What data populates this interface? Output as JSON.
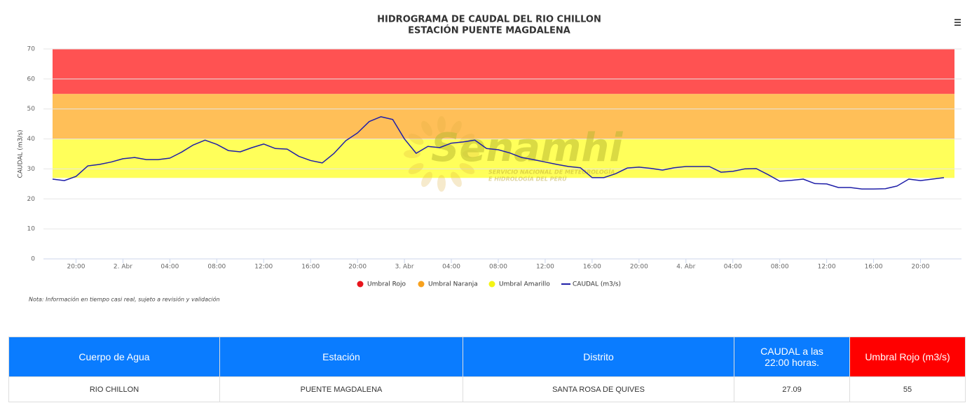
{
  "chart_data": {
    "type": "line",
    "title": "HIDROGRAMA DE CAUDAL DEL RIO CHILLON",
    "subtitle": "ESTACIÓN PUENTE MAGDALENA",
    "y_label": "CAUDAL (m3/s)",
    "note": "Nota: Información en tiempo casi real, sujeto a revisión y validación",
    "watermark": {
      "name": "Senamhi",
      "line1": "SERVICIO NACIONAL DE METEOROLOGÍA",
      "line2": "E HIDROLOGÍA DEL PERÚ"
    },
    "ylim": [
      0,
      70
    ],
    "yticks": [
      0,
      10,
      20,
      30,
      40,
      50,
      60,
      70
    ],
    "grid": true,
    "categories": [
      null,
      null,
      "20:00",
      null,
      null,
      null,
      "2. Abr",
      null,
      null,
      null,
      "04:00",
      null,
      null,
      null,
      "08:00",
      null,
      null,
      null,
      "12:00",
      null,
      null,
      null,
      "16:00",
      null,
      null,
      null,
      "20:00",
      null,
      null,
      null,
      "3. Abr",
      null,
      null,
      null,
      "04:00",
      null,
      null,
      null,
      "08:00",
      null,
      null,
      null,
      "12:00",
      null,
      null,
      null,
      "16:00",
      null,
      null,
      null,
      "20:00",
      null,
      null,
      null,
      "4. Abr",
      null,
      null,
      null,
      "04:00",
      null,
      null,
      null,
      "08:00",
      null,
      null,
      null,
      "12:00",
      null,
      null,
      null,
      "16:00",
      null,
      null,
      null,
      "20:00",
      null,
      null
    ],
    "thresholds": [
      {
        "name": "Umbral Rojo",
        "color": "#ff5252",
        "legend_color": "#e8141c",
        "value": 55
      },
      {
        "name": "Umbral Naranja",
        "color": "#ffbf58",
        "legend_color": "#f7a11e",
        "value": 40
      },
      {
        "name": "Umbral Amarillo",
        "color": "#ffff5a",
        "legend_color": "#f4f414",
        "value": 27
      }
    ],
    "series": [
      {
        "name": "CAUDAL (m3/s)",
        "color": "#1f1fa8",
        "values": [
          26.6,
          26.1,
          27.5,
          31,
          31.5,
          32.3,
          33.4,
          33.8,
          33.1,
          33.1,
          33.6,
          35.6,
          38,
          39.6,
          38.2,
          36.1,
          35.7,
          37.1,
          38.3,
          36.8,
          36.6,
          34.2,
          32.8,
          32,
          35.2,
          39.4,
          42,
          45.8,
          47.4,
          46.5,
          40,
          35.2,
          37.5,
          37.1,
          38.6,
          39,
          39.6,
          36.8,
          36.4,
          35.3,
          33.8,
          33.1,
          32.3,
          31.5,
          30.8,
          30.4,
          27.1,
          27.1,
          28.4,
          30.3,
          30.6,
          30.2,
          29.6,
          30.4,
          30.8,
          30.8,
          30.8,
          28.9,
          29.2,
          30,
          30.1,
          28.1,
          25.9,
          26.2,
          26.6,
          25.1,
          25,
          23.8,
          23.8,
          23.3,
          23.3,
          23.4,
          24.3,
          26.6,
          26.1,
          26.6,
          27.09
        ]
      }
    ]
  },
  "table": {
    "headers": [
      "Cuerpo de Agua",
      "Estación",
      "Distrito",
      "CAUDAL a las 22:00 horas.",
      "Umbral Rojo (m3/s)"
    ],
    "rows": [
      [
        "RIO CHILLON",
        "PUENTE MAGDALENA",
        "SANTA ROSA DE QUIVES",
        "27.09",
        "55"
      ]
    ]
  }
}
